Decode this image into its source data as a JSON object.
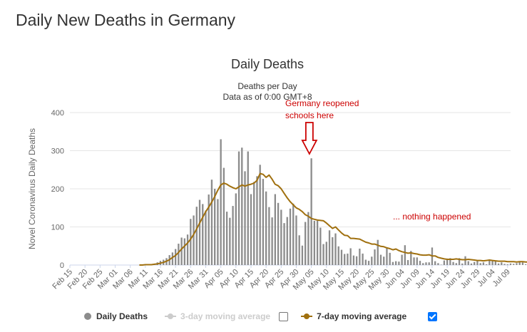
{
  "page": {
    "title": "Daily New Deaths in Germany"
  },
  "chart_data": {
    "type": "bar",
    "title": "Daily Deaths",
    "subtitle_line1": "Deaths per Day",
    "subtitle_line2": "Data as of 0:00 GMT+8",
    "ylabel": "Novel Coronavirus Daily Deaths",
    "xlabel": "",
    "ylim": [
      0,
      400
    ],
    "yticks": [
      0,
      100,
      200,
      300,
      400
    ],
    "grid": true,
    "legend_position": "bottom",
    "x_tick_labels": [
      "Feb 15",
      "Feb 20",
      "Feb 25",
      "Mar 01",
      "Mar 06",
      "Mar 11",
      "Mar 16",
      "Mar 21",
      "Mar 26",
      "Mar 31",
      "Apr 05",
      "Apr 10",
      "Apr 15",
      "Apr 20",
      "Apr 25",
      "Apr 30",
      "May 05",
      "May 10",
      "May 15",
      "May 20",
      "May 25",
      "May 30",
      "Jun 04",
      "Jun 09",
      "Jun 14",
      "Jun 19",
      "Jun 24",
      "Jun 29",
      "Jul 04",
      "Jul 09"
    ],
    "x_range": [
      "Feb 15",
      "Jul 10"
    ],
    "series": [
      {
        "name": "Daily Deaths",
        "type": "bar",
        "color": "#8c8c8c",
        "start": "Mar 09",
        "values": [
          0,
          1,
          1,
          0,
          2,
          3,
          7,
          11,
          14,
          18,
          26,
          33,
          42,
          56,
          72,
          70,
          80,
          121,
          130,
          153,
          171,
          160,
          143,
          185,
          224,
          200,
          173,
          330,
          255,
          140,
          124,
          155,
          188,
          298,
          308,
          246,
          298,
          186,
          218,
          233,
          263,
          226,
          193,
          152,
          125,
          186,
          163,
          145,
          110,
          126,
          148,
          161,
          130,
          78,
          51,
          113,
          139,
          280,
          116,
          116,
          98,
          55,
          61,
          91,
          73,
          83,
          49,
          40,
          29,
          30,
          44,
          25,
          23,
          43,
          30,
          14,
          11,
          22,
          41,
          66,
          27,
          22,
          45,
          32,
          8,
          10,
          9,
          27,
          52,
          13,
          37,
          20,
          20,
          11,
          5,
          7,
          7,
          46,
          10,
          5,
          1,
          12,
          17,
          18,
          8,
          5,
          18,
          4,
          23,
          10,
          4,
          8,
          11,
          5,
          7,
          2,
          13,
          11,
          10,
          4,
          7,
          3,
          2,
          4,
          3,
          5,
          8,
          7,
          2,
          8,
          3,
          8,
          4,
          1,
          6,
          3,
          0,
          2
        ]
      },
      {
        "name": "3-day moving average",
        "type": "line",
        "color": "#cccccc",
        "visible": false,
        "checked": false
      },
      {
        "name": "7-day moving average",
        "type": "line",
        "color": "#a0700f",
        "visible": true,
        "checked": true,
        "start": "Mar 09",
        "values": [
          0,
          0,
          1,
          1,
          1,
          2,
          3,
          5,
          7,
          10,
          14,
          20,
          25,
          33,
          42,
          50,
          58,
          68,
          80,
          95,
          110,
          125,
          140,
          152,
          165,
          180,
          196,
          210,
          215,
          212,
          207,
          203,
          200,
          205,
          210,
          207,
          210,
          212,
          215,
          222,
          240,
          238,
          230,
          236,
          225,
          212,
          208,
          200,
          188,
          176,
          166,
          158,
          150,
          146,
          140,
          132,
          128,
          122,
          120,
          118,
          117,
          116,
          110,
          103,
          96,
          100,
          92,
          84,
          78,
          77,
          70,
          70,
          69,
          68,
          64,
          60,
          58,
          55,
          55,
          52,
          49,
          48,
          45,
          43,
          40,
          42,
          38,
          35,
          33,
          31,
          32,
          30,
          29,
          27,
          26,
          26,
          27,
          24,
          24,
          20,
          18,
          16,
          15,
          15,
          15,
          16,
          15,
          14,
          14,
          15,
          14,
          13,
          12,
          12,
          11,
          12,
          13,
          12,
          11,
          10,
          10,
          10,
          9,
          9,
          9,
          8,
          9,
          9,
          8,
          8,
          8,
          8,
          8,
          7,
          8,
          8,
          9,
          9
        ]
      }
    ],
    "annotations": [
      {
        "id": "reopen",
        "text_line1": "Germany reopened",
        "text_line2": "schools here",
        "date": "May 06",
        "color": "#cc0000"
      },
      {
        "id": "nothing",
        "text": "... nothing happened",
        "color": "#cc0000"
      }
    ]
  }
}
